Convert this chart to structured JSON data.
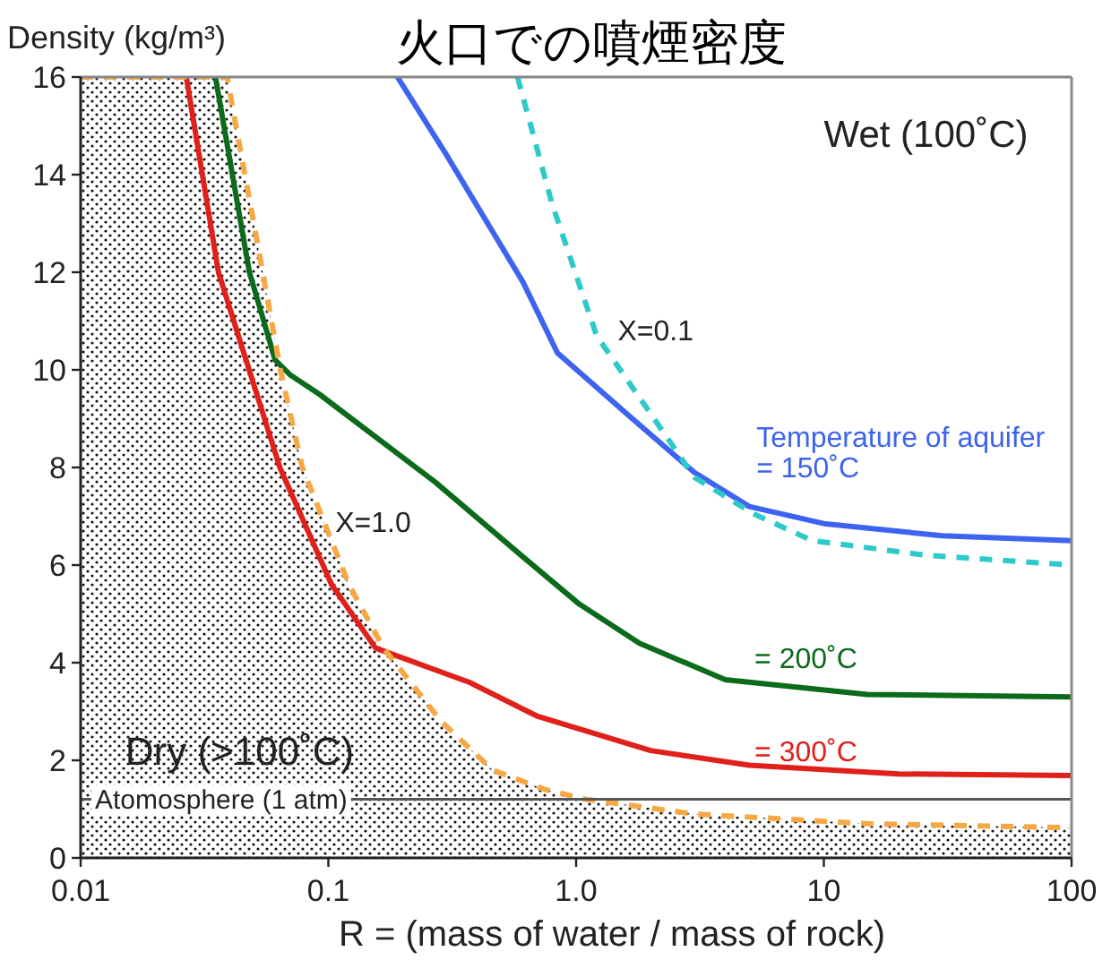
{
  "chart_data": {
    "type": "line",
    "title": "火口での噴煙密度",
    "xlabel": "R = (mass of water / mass of rock)",
    "ylabel": "Density (kg/m³)",
    "log": "x",
    "xlim": [
      0.01,
      100
    ],
    "ylim": [
      0,
      16
    ],
    "xticks": [
      0.01,
      0.1,
      {
        "value": 1,
        "label": "1.0"
      },
      10,
      100
    ],
    "yticks": [
      0,
      2,
      4,
      6,
      8,
      10,
      12,
      14,
      16
    ],
    "series": [
      {
        "name": "= 300˚C",
        "color": "#e0201b",
        "x": [
          0.0267,
          0.036,
          0.0637,
          0.103,
          0.155,
          0.37,
          0.7,
          2,
          5,
          20,
          100
        ],
        "values": [
          16,
          12,
          8,
          5.6,
          4.3,
          3.6,
          2.9,
          2.2,
          1.9,
          1.72,
          1.69
        ]
      },
      {
        "name": "= 200˚C",
        "color": "#0b6b1a",
        "x": [
          0.035,
          0.048,
          0.061,
          0.07,
          0.092,
          0.27,
          0.6,
          1.03,
          1.8,
          4,
          15,
          100
        ],
        "values": [
          16,
          12,
          10.2,
          9.9,
          9.5,
          7.7,
          6.2,
          5.2,
          4.4,
          3.65,
          3.35,
          3.3
        ]
      },
      {
        "name": "Temperature of aquifer\n= 150˚C",
        "color": "#3d63f0",
        "x": [
          0.19,
          0.3,
          0.61,
          0.84,
          1.6,
          3,
          5,
          10,
          30,
          100
        ],
        "values": [
          16,
          14.4,
          11.8,
          10.35,
          9.1,
          7.9,
          7.2,
          6.85,
          6.6,
          6.5
        ]
      },
      {
        "name": "X=0.1",
        "color": "#2ec9c9",
        "line_style": "dashed",
        "x": [
          0.58,
          0.8,
          1.21,
          2,
          3,
          5.2,
          9,
          26,
          100
        ],
        "values": [
          16,
          13.4,
          10.7,
          9.1,
          7.8,
          7.05,
          6.5,
          6.2,
          6.0
        ]
      },
      {
        "type": "area",
        "name": "X=1.0",
        "color": "#f5a844",
        "line_style": "dashed",
        "x": [
          0.01,
          0.039,
          0.05,
          0.064,
          0.0785,
          0.121,
          0.167,
          0.285,
          0.46,
          0.75,
          1.1,
          3,
          15,
          100
        ],
        "values": [
          16,
          16,
          13,
          10,
          8,
          5.6,
          4.3,
          2.8,
          1.8,
          1.4,
          1.2,
          0.9,
          0.7,
          0.62
        ]
      }
    ],
    "ref_lines": [
      {
        "axis": "y",
        "value": 1.2,
        "label": "Atomosphere (1 atm)",
        "color": "#555555"
      }
    ],
    "annotations": [
      "Wet (100˚C)",
      "Dry (>100˚C)"
    ]
  }
}
